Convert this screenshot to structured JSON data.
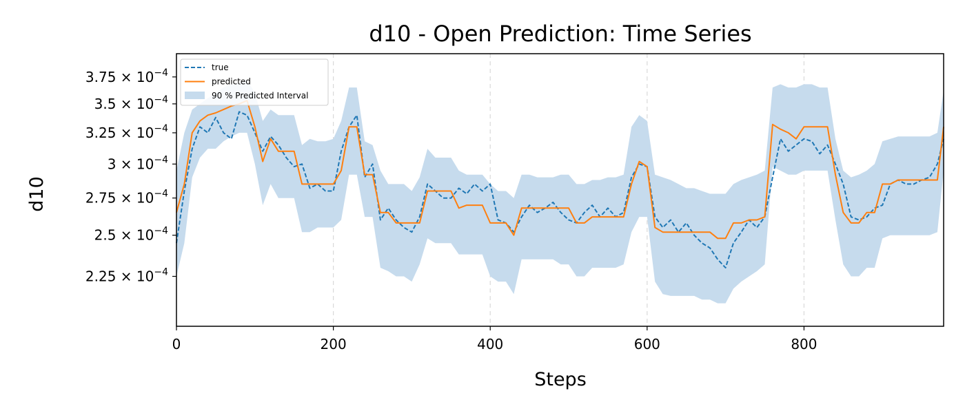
{
  "chart_data": {
    "type": "line",
    "title": "d10 - Open Prediction: Time Series",
    "xlabel": "Steps",
    "ylabel": "d10",
    "xlim": [
      0,
      978
    ],
    "ylim": [
      0.000198,
      0.000398
    ],
    "y_scale": "log",
    "grid": "vertical dashed lines at x ticks",
    "legend_position": "top-left",
    "x_ticks": [
      0,
      200,
      400,
      600,
      800
    ],
    "y_ticks": [
      {
        "value": 0.000225,
        "mantissa": "2.25"
      },
      {
        "value": 0.00025,
        "mantissa": "2.5"
      },
      {
        "value": 0.000275,
        "mantissa": "2.75"
      },
      {
        "value": 0.0003,
        "mantissa": "3"
      },
      {
        "value": 0.000325,
        "mantissa": "3.25"
      },
      {
        "value": 0.00035,
        "mantissa": "3.5"
      },
      {
        "value": 0.000375,
        "mantissa": "3.75"
      }
    ],
    "y_tick_base": "× 10",
    "y_tick_exponent": "−4",
    "colors": {
      "true": "#1f77b4",
      "predicted": "#ff7f0e",
      "interval": "#c6dbed"
    },
    "series": [
      {
        "name": "true",
        "style": "dashed",
        "x": [
          0,
          10,
          20,
          30,
          40,
          50,
          60,
          70,
          80,
          90,
          100,
          110,
          120,
          130,
          140,
          150,
          160,
          170,
          180,
          190,
          200,
          210,
          220,
          230,
          240,
          250,
          260,
          270,
          280,
          290,
          300,
          310,
          320,
          330,
          340,
          350,
          360,
          370,
          380,
          390,
          400,
          410,
          420,
          430,
          440,
          450,
          460,
          470,
          480,
          490,
          500,
          510,
          520,
          530,
          540,
          550,
          560,
          570,
          580,
          590,
          600,
          610,
          620,
          630,
          640,
          650,
          660,
          670,
          680,
          690,
          700,
          710,
          720,
          730,
          740,
          750,
          760,
          770,
          780,
          790,
          800,
          810,
          820,
          830,
          840,
          850,
          860,
          870,
          880,
          890,
          900,
          910,
          920,
          930,
          940,
          950,
          960,
          970,
          978
        ],
        "y": [
          0.000245,
          0.00028,
          0.000312,
          0.00033,
          0.000325,
          0.000338,
          0.000325,
          0.00032,
          0.000343,
          0.00034,
          0.000325,
          0.00031,
          0.000322,
          0.000315,
          0.000305,
          0.000298,
          0.0003,
          0.000282,
          0.000285,
          0.00028,
          0.00028,
          0.00031,
          0.00033,
          0.00034,
          0.00029,
          0.0003,
          0.00026,
          0.000268,
          0.00026,
          0.000255,
          0.000252,
          0.000262,
          0.000285,
          0.00028,
          0.000275,
          0.000275,
          0.000282,
          0.000278,
          0.000285,
          0.00028,
          0.000285,
          0.00026,
          0.000258,
          0.000252,
          0.000262,
          0.00027,
          0.000265,
          0.000268,
          0.000272,
          0.000265,
          0.00026,
          0.000258,
          0.000265,
          0.00027,
          0.000262,
          0.000268,
          0.000262,
          0.000265,
          0.00029,
          0.0003,
          0.000298,
          0.000262,
          0.000255,
          0.00026,
          0.000252,
          0.000258,
          0.00025,
          0.000245,
          0.000242,
          0.000235,
          0.00023,
          0.000245,
          0.000252,
          0.00026,
          0.000255,
          0.000262,
          0.00029,
          0.00032,
          0.00031,
          0.000315,
          0.00032,
          0.000318,
          0.000308,
          0.000315,
          0.0003,
          0.000285,
          0.000262,
          0.00026,
          0.000262,
          0.000268,
          0.00027,
          0.000285,
          0.000288,
          0.000285,
          0.000285,
          0.000288,
          0.00029,
          0.0003,
          0.00032
        ]
      },
      {
        "name": "predicted",
        "style": "solid",
        "x": [
          0,
          10,
          20,
          30,
          40,
          50,
          60,
          70,
          80,
          90,
          100,
          110,
          120,
          130,
          140,
          150,
          160,
          170,
          180,
          190,
          200,
          210,
          220,
          230,
          240,
          250,
          260,
          270,
          280,
          290,
          300,
          310,
          320,
          330,
          340,
          350,
          360,
          370,
          380,
          390,
          400,
          410,
          420,
          430,
          440,
          450,
          460,
          470,
          480,
          490,
          500,
          510,
          520,
          530,
          540,
          550,
          560,
          570,
          580,
          590,
          600,
          610,
          620,
          630,
          640,
          650,
          660,
          670,
          680,
          690,
          700,
          710,
          720,
          730,
          740,
          750,
          760,
          770,
          780,
          790,
          800,
          810,
          820,
          830,
          840,
          850,
          860,
          870,
          880,
          890,
          900,
          910,
          920,
          930,
          940,
          950,
          960,
          970,
          978
        ],
        "y": [
          0.000265,
          0.000285,
          0.000325,
          0.000335,
          0.00034,
          0.000342,
          0.000345,
          0.000348,
          0.00035,
          0.000353,
          0.00033,
          0.000302,
          0.00032,
          0.00031,
          0.00031,
          0.00031,
          0.000285,
          0.000285,
          0.000285,
          0.000285,
          0.000285,
          0.000295,
          0.00033,
          0.00033,
          0.000292,
          0.000292,
          0.000265,
          0.000265,
          0.000258,
          0.000258,
          0.000258,
          0.000258,
          0.00028,
          0.00028,
          0.00028,
          0.00028,
          0.000268,
          0.00027,
          0.00027,
          0.00027,
          0.000258,
          0.000258,
          0.000258,
          0.00025,
          0.000268,
          0.000268,
          0.000268,
          0.000268,
          0.000268,
          0.000268,
          0.000268,
          0.000258,
          0.000258,
          0.000262,
          0.000262,
          0.000262,
          0.000262,
          0.000262,
          0.000285,
          0.000302,
          0.000298,
          0.000255,
          0.000252,
          0.000252,
          0.000252,
          0.000252,
          0.000252,
          0.000252,
          0.000252,
          0.000248,
          0.000248,
          0.000258,
          0.000258,
          0.00026,
          0.00026,
          0.000262,
          0.000332,
          0.000328,
          0.000325,
          0.00032,
          0.00033,
          0.00033,
          0.00033,
          0.00033,
          0.000292,
          0.000265,
          0.000258,
          0.000258,
          0.000265,
          0.000265,
          0.000285,
          0.000285,
          0.000288,
          0.000288,
          0.000288,
          0.000288,
          0.000288,
          0.000288,
          0.00033
        ]
      }
    ],
    "interval": {
      "name": "90 % Predicted Interval",
      "x": [
        0,
        10,
        20,
        30,
        40,
        50,
        60,
        70,
        80,
        90,
        100,
        110,
        120,
        130,
        140,
        150,
        160,
        170,
        180,
        190,
        200,
        210,
        220,
        230,
        240,
        250,
        260,
        270,
        280,
        290,
        300,
        310,
        320,
        330,
        340,
        350,
        360,
        370,
        380,
        390,
        400,
        410,
        420,
        430,
        440,
        450,
        460,
        470,
        480,
        490,
        500,
        510,
        520,
        530,
        540,
        550,
        560,
        570,
        580,
        590,
        600,
        610,
        620,
        630,
        640,
        650,
        660,
        670,
        680,
        690,
        700,
        710,
        720,
        730,
        740,
        750,
        760,
        770,
        780,
        790,
        800,
        810,
        820,
        830,
        840,
        850,
        860,
        870,
        880,
        890,
        900,
        910,
        920,
        930,
        940,
        950,
        960,
        970,
        978
      ],
      "upper": [
        0.000295,
        0.000325,
        0.000345,
        0.00035,
        0.000355,
        0.00036,
        0.000365,
        0.000368,
        0.00037,
        0.000372,
        0.00036,
        0.000335,
        0.000345,
        0.00034,
        0.00034,
        0.00034,
        0.000315,
        0.00032,
        0.000318,
        0.000318,
        0.00032,
        0.000335,
        0.000365,
        0.000365,
        0.000318,
        0.000315,
        0.000295,
        0.000285,
        0.000285,
        0.000285,
        0.00028,
        0.00029,
        0.000312,
        0.000305,
        0.000305,
        0.000305,
        0.000295,
        0.000292,
        0.000292,
        0.000292,
        0.000285,
        0.00028,
        0.00028,
        0.000275,
        0.000292,
        0.000292,
        0.00029,
        0.00029,
        0.00029,
        0.000292,
        0.000292,
        0.000285,
        0.000285,
        0.000288,
        0.000288,
        0.00029,
        0.00029,
        0.000292,
        0.00033,
        0.00034,
        0.000335,
        0.000292,
        0.00029,
        0.000288,
        0.000285,
        0.000282,
        0.000282,
        0.00028,
        0.000278,
        0.000278,
        0.000278,
        0.000285,
        0.000288,
        0.00029,
        0.000292,
        0.000295,
        0.000365,
        0.000368,
        0.000365,
        0.000365,
        0.000368,
        0.000368,
        0.000365,
        0.000365,
        0.00032,
        0.000295,
        0.00029,
        0.000292,
        0.000295,
        0.0003,
        0.000318,
        0.00032,
        0.000322,
        0.000322,
        0.000322,
        0.000322,
        0.000322,
        0.000325,
        0.000362
      ],
      "lower": [
        0.000225,
        0.000245,
        0.00029,
        0.000305,
        0.000312,
        0.000312,
        0.000318,
        0.000322,
        0.000325,
        0.000325,
        0.0003,
        0.00027,
        0.000285,
        0.000275,
        0.000275,
        0.000275,
        0.000252,
        0.000252,
        0.000255,
        0.000255,
        0.000255,
        0.00026,
        0.000292,
        0.000292,
        0.000262,
        0.000262,
        0.00023,
        0.000228,
        0.000225,
        0.000225,
        0.000222,
        0.000232,
        0.000248,
        0.000245,
        0.000245,
        0.000245,
        0.000238,
        0.000238,
        0.000238,
        0.000238,
        0.000225,
        0.000222,
        0.000222,
        0.000215,
        0.000235,
        0.000235,
        0.000235,
        0.000235,
        0.000235,
        0.000232,
        0.000232,
        0.000225,
        0.000225,
        0.00023,
        0.00023,
        0.00023,
        0.00023,
        0.000232,
        0.000252,
        0.000262,
        0.000262,
        0.000222,
        0.000215,
        0.000214,
        0.000214,
        0.000214,
        0.000214,
        0.000212,
        0.000212,
        0.00021,
        0.00021,
        0.000218,
        0.000222,
        0.000225,
        0.000228,
        0.000232,
        0.000298,
        0.000295,
        0.000292,
        0.000292,
        0.000295,
        0.000295,
        0.000295,
        0.000295,
        0.00026,
        0.000232,
        0.000225,
        0.000225,
        0.00023,
        0.00023,
        0.000248,
        0.00025,
        0.00025,
        0.00025,
        0.00025,
        0.00025,
        0.00025,
        0.000252,
        0.000295
      ]
    }
  }
}
